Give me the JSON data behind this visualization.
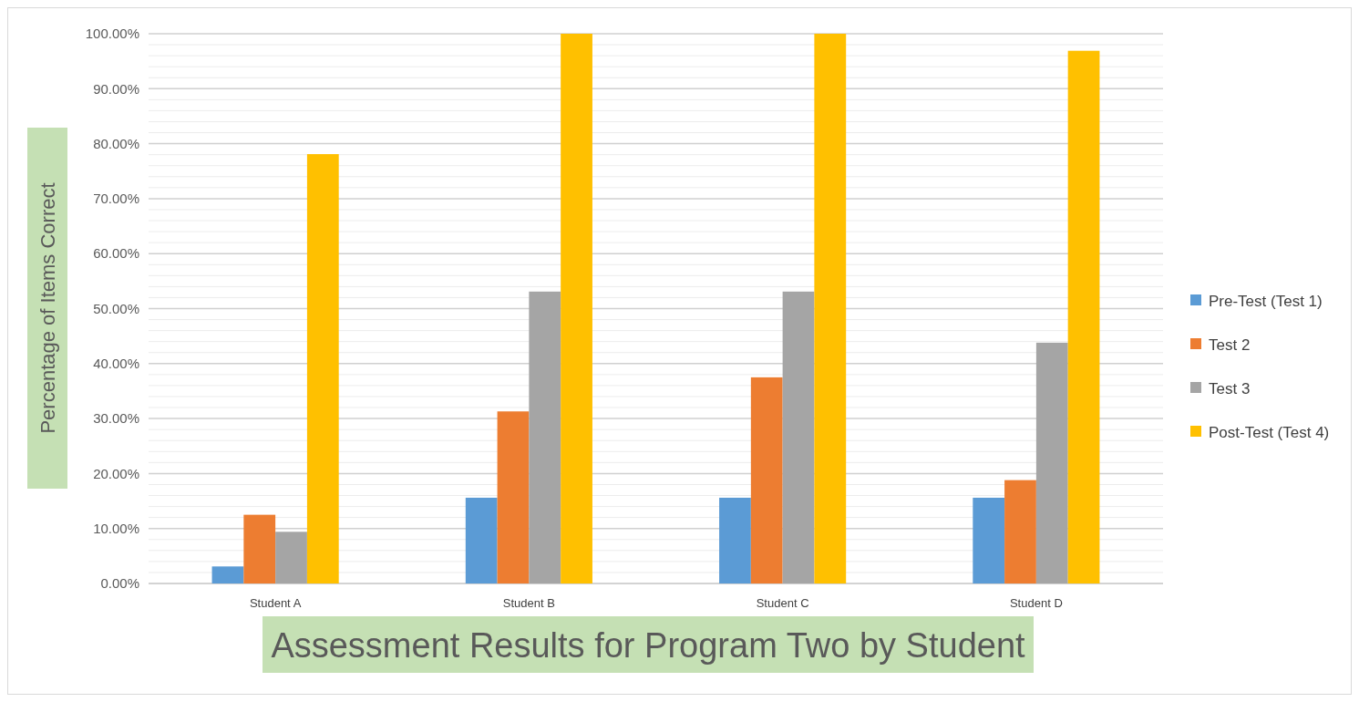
{
  "chart_data": {
    "type": "bar",
    "title": "Assessment Results for Program Two by Student",
    "ylabel": "Percentage of Items Correct",
    "categories": [
      "Student A",
      "Student B",
      "Student C",
      "Student D"
    ],
    "series": [
      {
        "name": "Pre-Test (Test 1)",
        "color": "#5b9bd5",
        "values": [
          3.1,
          15.6,
          15.6,
          15.6
        ]
      },
      {
        "name": "Test 2",
        "color": "#ed7d31",
        "values": [
          12.5,
          31.3,
          37.5,
          18.8
        ]
      },
      {
        "name": "Test 3",
        "color": "#a5a5a5",
        "values": [
          9.4,
          53.1,
          53.1,
          43.8
        ]
      },
      {
        "name": "Post-Test (Test 4)",
        "color": "#ffc000",
        "values": [
          78.1,
          100,
          100,
          96.9
        ]
      }
    ],
    "ylim": [
      0,
      100
    ],
    "yticks": [
      {
        "value": 0,
        "label": "0.00%"
      },
      {
        "value": 2,
        "label": null
      },
      {
        "value": 4,
        "label": null
      },
      {
        "value": 6,
        "label": null
      },
      {
        "value": 8,
        "label": null
      },
      {
        "value": 10,
        "label": "10.00%"
      },
      {
        "value": 12,
        "label": null
      },
      {
        "value": 14,
        "label": null
      },
      {
        "value": 16,
        "label": null
      },
      {
        "value": 18,
        "label": null
      },
      {
        "value": 20,
        "label": "20.00%"
      },
      {
        "value": 22,
        "label": null
      },
      {
        "value": 24,
        "label": null
      },
      {
        "value": 26,
        "label": null
      },
      {
        "value": 28,
        "label": null
      },
      {
        "value": 30,
        "label": "30.00%"
      },
      {
        "value": 32,
        "label": null
      },
      {
        "value": 34,
        "label": null
      },
      {
        "value": 36,
        "label": null
      },
      {
        "value": 38,
        "label": null
      },
      {
        "value": 40,
        "label": "40.00%"
      },
      {
        "value": 42,
        "label": null
      },
      {
        "value": 44,
        "label": null
      },
      {
        "value": 46,
        "label": null
      },
      {
        "value": 48,
        "label": null
      },
      {
        "value": 50,
        "label": "50.00%"
      },
      {
        "value": 52,
        "label": null
      },
      {
        "value": 54,
        "label": null
      },
      {
        "value": 56,
        "label": null
      },
      {
        "value": 58,
        "label": null
      },
      {
        "value": 60,
        "label": "60.00%"
      },
      {
        "value": 62,
        "label": null
      },
      {
        "value": 64,
        "label": null
      },
      {
        "value": 66,
        "label": null
      },
      {
        "value": 68,
        "label": null
      },
      {
        "value": 70,
        "label": "70.00%"
      },
      {
        "value": 72,
        "label": null
      },
      {
        "value": 74,
        "label": null
      },
      {
        "value": 76,
        "label": null
      },
      {
        "value": 78,
        "label": null
      },
      {
        "value": 80,
        "label": "80.00%"
      },
      {
        "value": 82,
        "label": null
      },
      {
        "value": 84,
        "label": null
      },
      {
        "value": 86,
        "label": null
      },
      {
        "value": 88,
        "label": null
      },
      {
        "value": 90,
        "label": "90.00%"
      },
      {
        "value": 92,
        "label": null
      },
      {
        "value": 94,
        "label": null
      },
      {
        "value": 96,
        "label": null
      },
      {
        "value": 98,
        "label": null
      },
      {
        "value": 100,
        "label": "100.00%"
      }
    ],
    "grid": true,
    "legend": "right"
  }
}
